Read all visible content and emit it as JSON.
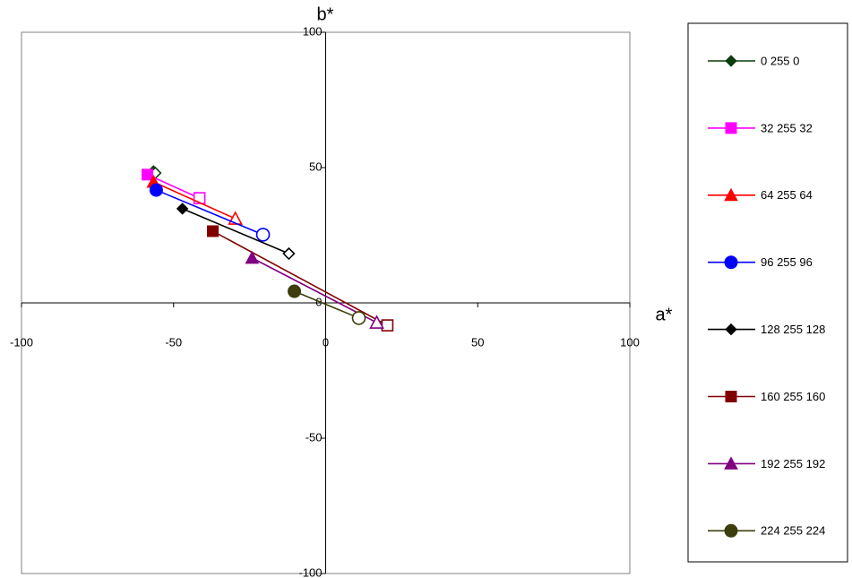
{
  "chart_data": {
    "type": "scatter",
    "x_label": "a*",
    "y_label": "b*",
    "xlim": [
      -100,
      100
    ],
    "ylim": [
      -100,
      100
    ],
    "xticks": [
      -100,
      -50,
      0,
      50,
      100
    ],
    "yticks": [
      -100,
      -50,
      0,
      50,
      100
    ],
    "grid": false,
    "legend": "right",
    "series": [
      {
        "name": "0 255 0",
        "color": "#0b3d0b",
        "marker": "diamond",
        "x": [
          -56.6,
          -56
        ],
        "values": [
          48.7,
          48
        ]
      },
      {
        "name": "32 255 32",
        "color": "#ff00ff",
        "marker": "square",
        "x": [
          -58.6,
          -41.5
        ],
        "values": [
          47.4,
          38.7
        ]
      },
      {
        "name": "64 255 64",
        "color": "#ff0000",
        "marker": "triangle",
        "x": [
          -56.6,
          -29.7
        ],
        "values": [
          44.7,
          31.1
        ]
      },
      {
        "name": "96 255 96",
        "color": "#0000ff",
        "marker": "circle",
        "x": [
          -55.7,
          -20.6
        ],
        "values": [
          41.7,
          25.2
        ]
      },
      {
        "name": "128 255 128",
        "color": "#000000",
        "marker": "diamond",
        "x": [
          -47.1,
          -12.1
        ],
        "values": [
          34.8,
          18.2
        ]
      },
      {
        "name": "160 255 160",
        "color": "#800000",
        "marker": "square",
        "x": [
          -37.1,
          20.3
        ],
        "values": [
          26.5,
          -8.3
        ]
      },
      {
        "name": "192 255 192",
        "color": "#800080",
        "marker": "triangle",
        "x": [
          -24.2,
          16.8
        ],
        "values": [
          16.6,
          -7.3
        ]
      },
      {
        "name": "224 255 224",
        "color": "#3d3d0d",
        "marker": "circle",
        "x": [
          -10.3,
          10.9
        ],
        "values": [
          4.3,
          -5.6
        ]
      }
    ]
  }
}
